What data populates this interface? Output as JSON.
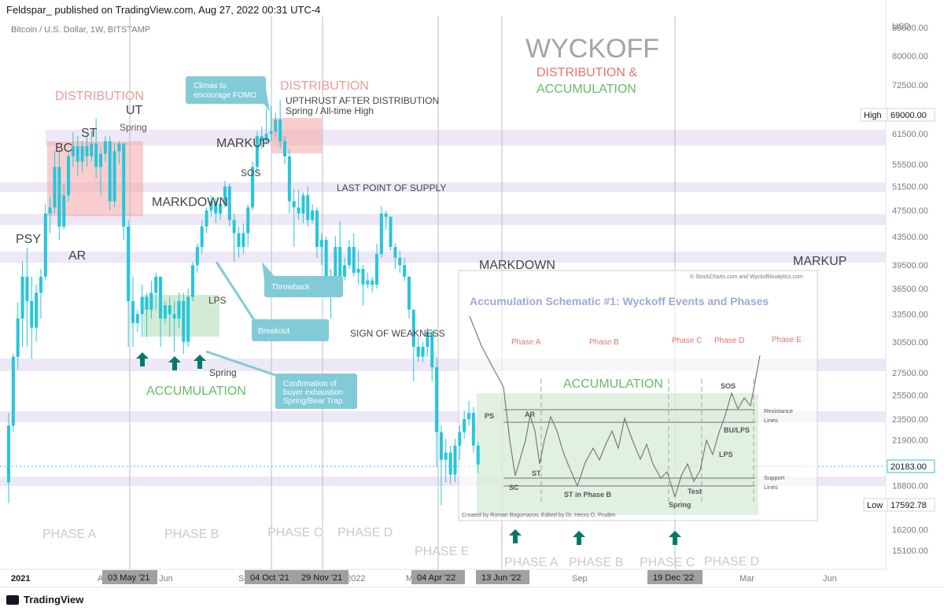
{
  "header": {
    "published": "Feldspar_ published on TradingView.com, Aug 27, 2022 00:31 UTC-4",
    "symbol": "Bitcoin / U.S. Dollar, 1W, BITSTAMP"
  },
  "footer": {
    "brand": "TradingView",
    "icon": "tradingview-logo-icon"
  },
  "price_axis": {
    "currency": "USD",
    "ticks": [
      "88000.00",
      "80000.00",
      "72500.00",
      "61500.00",
      "55500.00",
      "51500.00",
      "47500.00",
      "43500.00",
      "39500.00",
      "36500.00",
      "33500.00",
      "30500.00",
      "27500.00",
      "25500.00",
      "23500.00",
      "21900.00",
      "18800.00",
      "16200.00",
      "15100.00"
    ],
    "high_label": "High",
    "high_value": "69000.00",
    "current_value": "20183.00",
    "low_label": "Low",
    "low_value": "17592.78"
  },
  "time_axis": {
    "labels": [
      "2021",
      "A",
      "Jun",
      "Se",
      "2022",
      "M",
      "Sep",
      "Mar",
      "Jun"
    ],
    "date_markers": [
      "03 May '21",
      "04 Oct '21",
      "29 Nov '21",
      "04 Apr '22",
      "13 Jun '22",
      "19 Dec '22"
    ]
  },
  "title": {
    "main": "WYCKOFF",
    "line2": "DISTRIBUTION &",
    "line3": "ACCUMULATION"
  },
  "annotations": {
    "distribution1": "DISTRIBUTION",
    "ut": "UT",
    "spring1": "Spring",
    "st": "ST",
    "bc": "BC",
    "psy": "PSY",
    "ar": "AR",
    "markdown1": "MARKDOWN",
    "lps": "LPS",
    "accumulation1": "ACCUMULATION",
    "spring2": "Spring",
    "distribution2": "DISTRIBUTION",
    "upthrust1": "UPTHRUST AFTER DISTRIBUTION",
    "upthrust2": "Spring / All-time High",
    "markup1": "MARKUP",
    "sos": "SOS",
    "lpsy": "LAST POINT OF SUPPLY",
    "sow": "SIGN OF WEAKNESS",
    "markdown2": "MARKDOWN",
    "markup2": "MARKUP",
    "accumulation2": "ACCUMULATION"
  },
  "callouts": {
    "climax1": "Climax to",
    "climax2": "encourage FOMO",
    "throwback": "Throwback",
    "breakout": "Breakout",
    "confirm1": "Confirmation of",
    "confirm2": "buyer exhaustion",
    "confirm3": "Spring/Bear Trap"
  },
  "phases": [
    "PHASE A",
    "PHASE B",
    "PHASE C",
    "PHASE D",
    "PHASE E"
  ],
  "phases_future": [
    "PHASE A",
    "PHASE B",
    "PHASE C",
    "PHASE D"
  ],
  "schematic": {
    "credit_top": "© StockCharts.com and WyckoffAnalytics.com",
    "title": "Accumulation Schematic #1: Wyckoff Events and Phases",
    "phases": [
      "Phase A",
      "Phase B",
      "Phase C",
      "Phase D",
      "Phase E"
    ],
    "events": {
      "ps": "PS",
      "ar": "AR",
      "st": "ST",
      "sc": "SC",
      "st_b": "ST in Phase B",
      "spring": "Spring",
      "test": "Test",
      "sos": "SOS",
      "bu": "BU/LPS",
      "lps": "LPS"
    },
    "resistance1": "Resistance",
    "resistance2": "Lines",
    "support1": "Support",
    "support2": "Lines",
    "credit_bottom": "Created by Roman Bogomazov, Edited by Dr. Henry O. Pruden"
  },
  "colors": {
    "candle_up": "#26c6da",
    "candle_down": "#26c6da",
    "distribution": "#f4a6a6",
    "accumulation": "#a5d6a7",
    "band": "#ede7f6",
    "arrow": "#00796b",
    "callout": "#80cbd6"
  },
  "chart_data": {
    "type": "candlestick",
    "interval": "1W",
    "x_range": [
      "2020-12",
      "2023-06"
    ],
    "ylim": [
      15000,
      90000
    ],
    "candles": [
      {
        "o": 19000,
        "c": 23000,
        "h": 24000,
        "l": 17700
      },
      {
        "o": 23000,
        "c": 29000,
        "h": 29300,
        "l": 22500
      },
      {
        "o": 29000,
        "c": 33000,
        "h": 34800,
        "l": 27800
      },
      {
        "o": 33000,
        "c": 38000,
        "h": 40000,
        "l": 30000
      },
      {
        "o": 38000,
        "c": 35000,
        "h": 41900,
        "l": 30000
      },
      {
        "o": 35000,
        "c": 32000,
        "h": 38000,
        "l": 28800
      },
      {
        "o": 32000,
        "c": 36000,
        "h": 37000,
        "l": 30500
      },
      {
        "o": 36000,
        "c": 38000,
        "h": 39000,
        "l": 33000
      },
      {
        "o": 38000,
        "c": 47000,
        "h": 48500,
        "l": 37500
      },
      {
        "o": 47000,
        "c": 48000,
        "h": 49700,
        "l": 44000
      },
      {
        "o": 48000,
        "c": 55000,
        "h": 58000,
        "l": 47000
      },
      {
        "o": 55000,
        "c": 45000,
        "h": 58300,
        "l": 43000
      },
      {
        "o": 45000,
        "c": 50000,
        "h": 52000,
        "l": 44500
      },
      {
        "o": 50000,
        "c": 57000,
        "h": 58000,
        "l": 49000
      },
      {
        "o": 57000,
        "c": 59000,
        "h": 61800,
        "l": 55000
      },
      {
        "o": 59000,
        "c": 56000,
        "h": 61000,
        "l": 53500
      },
      {
        "o": 56000,
        "c": 59000,
        "h": 60000,
        "l": 54000
      },
      {
        "o": 59000,
        "c": 57000,
        "h": 61000,
        "l": 55000
      },
      {
        "o": 57000,
        "c": 59500,
        "h": 62000,
        "l": 56000
      },
      {
        "o": 59500,
        "c": 55000,
        "h": 64800,
        "l": 53000
      },
      {
        "o": 55000,
        "c": 57500,
        "h": 59000,
        "l": 50000
      },
      {
        "o": 57500,
        "c": 60000,
        "h": 61000,
        "l": 56000
      },
      {
        "o": 60000,
        "c": 49000,
        "h": 61000,
        "l": 47500
      },
      {
        "o": 49000,
        "c": 58000,
        "h": 59500,
        "l": 48000
      },
      {
        "o": 58000,
        "c": 59500,
        "h": 60000,
        "l": 55500
      },
      {
        "o": 59500,
        "c": 45000,
        "h": 59600,
        "l": 43000
      },
      {
        "o": 45000,
        "c": 35000,
        "h": 46000,
        "l": 30000
      },
      {
        "o": 35000,
        "c": 32500,
        "h": 38000,
        "l": 30000
      },
      {
        "o": 32500,
        "c": 33500,
        "h": 34000,
        "l": 31500
      },
      {
        "o": 33500,
        "c": 35500,
        "h": 37000,
        "l": 31000
      },
      {
        "o": 35500,
        "c": 34000,
        "h": 36000,
        "l": 31000
      },
      {
        "o": 34000,
        "c": 36000,
        "h": 37500,
        "l": 33000
      },
      {
        "o": 36000,
        "c": 38000,
        "h": 38500,
        "l": 34000
      },
      {
        "o": 38000,
        "c": 33000,
        "h": 38000,
        "l": 30000
      },
      {
        "o": 33000,
        "c": 34500,
        "h": 35000,
        "l": 32500
      },
      {
        "o": 34500,
        "c": 33500,
        "h": 35500,
        "l": 31000
      },
      {
        "o": 33500,
        "c": 33000,
        "h": 35000,
        "l": 29500
      },
      {
        "o": 33000,
        "c": 35000,
        "h": 36000,
        "l": 32000
      },
      {
        "o": 35000,
        "c": 30500,
        "h": 36000,
        "l": 29300
      },
      {
        "o": 30500,
        "c": 35500,
        "h": 36500,
        "l": 30000
      },
      {
        "o": 35500,
        "c": 39500,
        "h": 40000,
        "l": 35000
      },
      {
        "o": 39500,
        "c": 42000,
        "h": 42500,
        "l": 38500
      },
      {
        "o": 42000,
        "c": 45000,
        "h": 46000,
        "l": 41000
      },
      {
        "o": 45000,
        "c": 47500,
        "h": 48000,
        "l": 44000
      },
      {
        "o": 47500,
        "c": 49000,
        "h": 50000,
        "l": 46500
      },
      {
        "o": 49000,
        "c": 47000,
        "h": 49500,
        "l": 45500
      },
      {
        "o": 47000,
        "c": 48500,
        "h": 49500,
        "l": 46000
      },
      {
        "o": 48500,
        "c": 51500,
        "h": 52500,
        "l": 48000
      },
      {
        "o": 51500,
        "c": 46000,
        "h": 52000,
        "l": 45000
      },
      {
        "o": 46000,
        "c": 44000,
        "h": 47000,
        "l": 40000
      },
      {
        "o": 44000,
        "c": 42000,
        "h": 45000,
        "l": 40500
      },
      {
        "o": 42000,
        "c": 44000,
        "h": 45500,
        "l": 41000
      },
      {
        "o": 44000,
        "c": 48000,
        "h": 48500,
        "l": 42000
      },
      {
        "o": 48000,
        "c": 55000,
        "h": 56000,
        "l": 47500
      },
      {
        "o": 55000,
        "c": 61000,
        "h": 62000,
        "l": 54000
      },
      {
        "o": 61000,
        "c": 60000,
        "h": 63000,
        "l": 58500
      },
      {
        "o": 60000,
        "c": 61500,
        "h": 67000,
        "l": 59500
      },
      {
        "o": 61500,
        "c": 62000,
        "h": 67500,
        "l": 60000
      },
      {
        "o": 62000,
        "c": 64500,
        "h": 66000,
        "l": 61000
      },
      {
        "o": 64500,
        "c": 60000,
        "h": 69000,
        "l": 58500
      },
      {
        "o": 60000,
        "c": 57000,
        "h": 61000,
        "l": 55500
      },
      {
        "o": 57000,
        "c": 49000,
        "h": 58500,
        "l": 47000
      },
      {
        "o": 49000,
        "c": 48000,
        "h": 51000,
        "l": 42000
      },
      {
        "o": 48000,
        "c": 47000,
        "h": 51000,
        "l": 46000
      },
      {
        "o": 47000,
        "c": 50000,
        "h": 50500,
        "l": 45500
      },
      {
        "o": 50000,
        "c": 46000,
        "h": 51500,
        "l": 45000
      },
      {
        "o": 46000,
        "c": 47500,
        "h": 48500,
        "l": 45500
      },
      {
        "o": 47500,
        "c": 42000,
        "h": 48000,
        "l": 40500
      },
      {
        "o": 42000,
        "c": 43000,
        "h": 44000,
        "l": 39500
      },
      {
        "o": 43000,
        "c": 36000,
        "h": 43500,
        "l": 35500
      },
      {
        "o": 36000,
        "c": 37500,
        "h": 39000,
        "l": 33000
      },
      {
        "o": 37500,
        "c": 42000,
        "h": 43500,
        "l": 36500
      },
      {
        "o": 42000,
        "c": 38000,
        "h": 45800,
        "l": 37000
      },
      {
        "o": 38000,
        "c": 39500,
        "h": 40500,
        "l": 37500
      },
      {
        "o": 39500,
        "c": 42000,
        "h": 43000,
        "l": 39000
      },
      {
        "o": 42000,
        "c": 38500,
        "h": 44000,
        "l": 38000
      },
      {
        "o": 38500,
        "c": 39000,
        "h": 41500,
        "l": 37000
      },
      {
        "o": 39000,
        "c": 37000,
        "h": 39500,
        "l": 34500
      },
      {
        "o": 37000,
        "c": 37500,
        "h": 38500,
        "l": 36500
      },
      {
        "o": 37500,
        "c": 37000,
        "h": 38000,
        "l": 36000
      },
      {
        "o": 37000,
        "c": 41000,
        "h": 42500,
        "l": 36500
      },
      {
        "o": 41000,
        "c": 47000,
        "h": 48200,
        "l": 40500
      },
      {
        "o": 47000,
        "c": 46500,
        "h": 47500,
        "l": 44500
      },
      {
        "o": 46500,
        "c": 42000,
        "h": 46500,
        "l": 41500
      },
      {
        "o": 42000,
        "c": 40500,
        "h": 42500,
        "l": 39000
      },
      {
        "o": 40500,
        "c": 39500,
        "h": 41500,
        "l": 38500
      },
      {
        "o": 39500,
        "c": 38000,
        "h": 40500,
        "l": 37500
      },
      {
        "o": 38000,
        "c": 34000,
        "h": 38000,
        "l": 33000
      },
      {
        "o": 34000,
        "c": 30000,
        "h": 34000,
        "l": 26700
      },
      {
        "o": 30000,
        "c": 29000,
        "h": 31000,
        "l": 28500
      },
      {
        "o": 29000,
        "c": 30000,
        "h": 30500,
        "l": 28500
      },
      {
        "o": 30000,
        "c": 31500,
        "h": 32000,
        "l": 29000
      },
      {
        "o": 31500,
        "c": 28000,
        "h": 31700,
        "l": 26700
      },
      {
        "o": 28000,
        "c": 22500,
        "h": 29000,
        "l": 20000
      },
      {
        "o": 22500,
        "c": 20500,
        "h": 23000,
        "l": 17600
      },
      {
        "o": 20500,
        "c": 21000,
        "h": 22000,
        "l": 19000
      },
      {
        "o": 21000,
        "c": 19500,
        "h": 21500,
        "l": 18900
      },
      {
        "o": 19500,
        "c": 21500,
        "h": 22000,
        "l": 19000
      },
      {
        "o": 21500,
        "c": 22500,
        "h": 23000,
        "l": 20500
      },
      {
        "o": 22500,
        "c": 23500,
        "h": 24200,
        "l": 22000
      },
      {
        "o": 23500,
        "c": 24000,
        "h": 25000,
        "l": 23000
      },
      {
        "o": 24000,
        "c": 21500,
        "h": 24500,
        "l": 21000
      },
      {
        "o": 21500,
        "c": 20183,
        "h": 21800,
        "l": 19600
      }
    ]
  }
}
